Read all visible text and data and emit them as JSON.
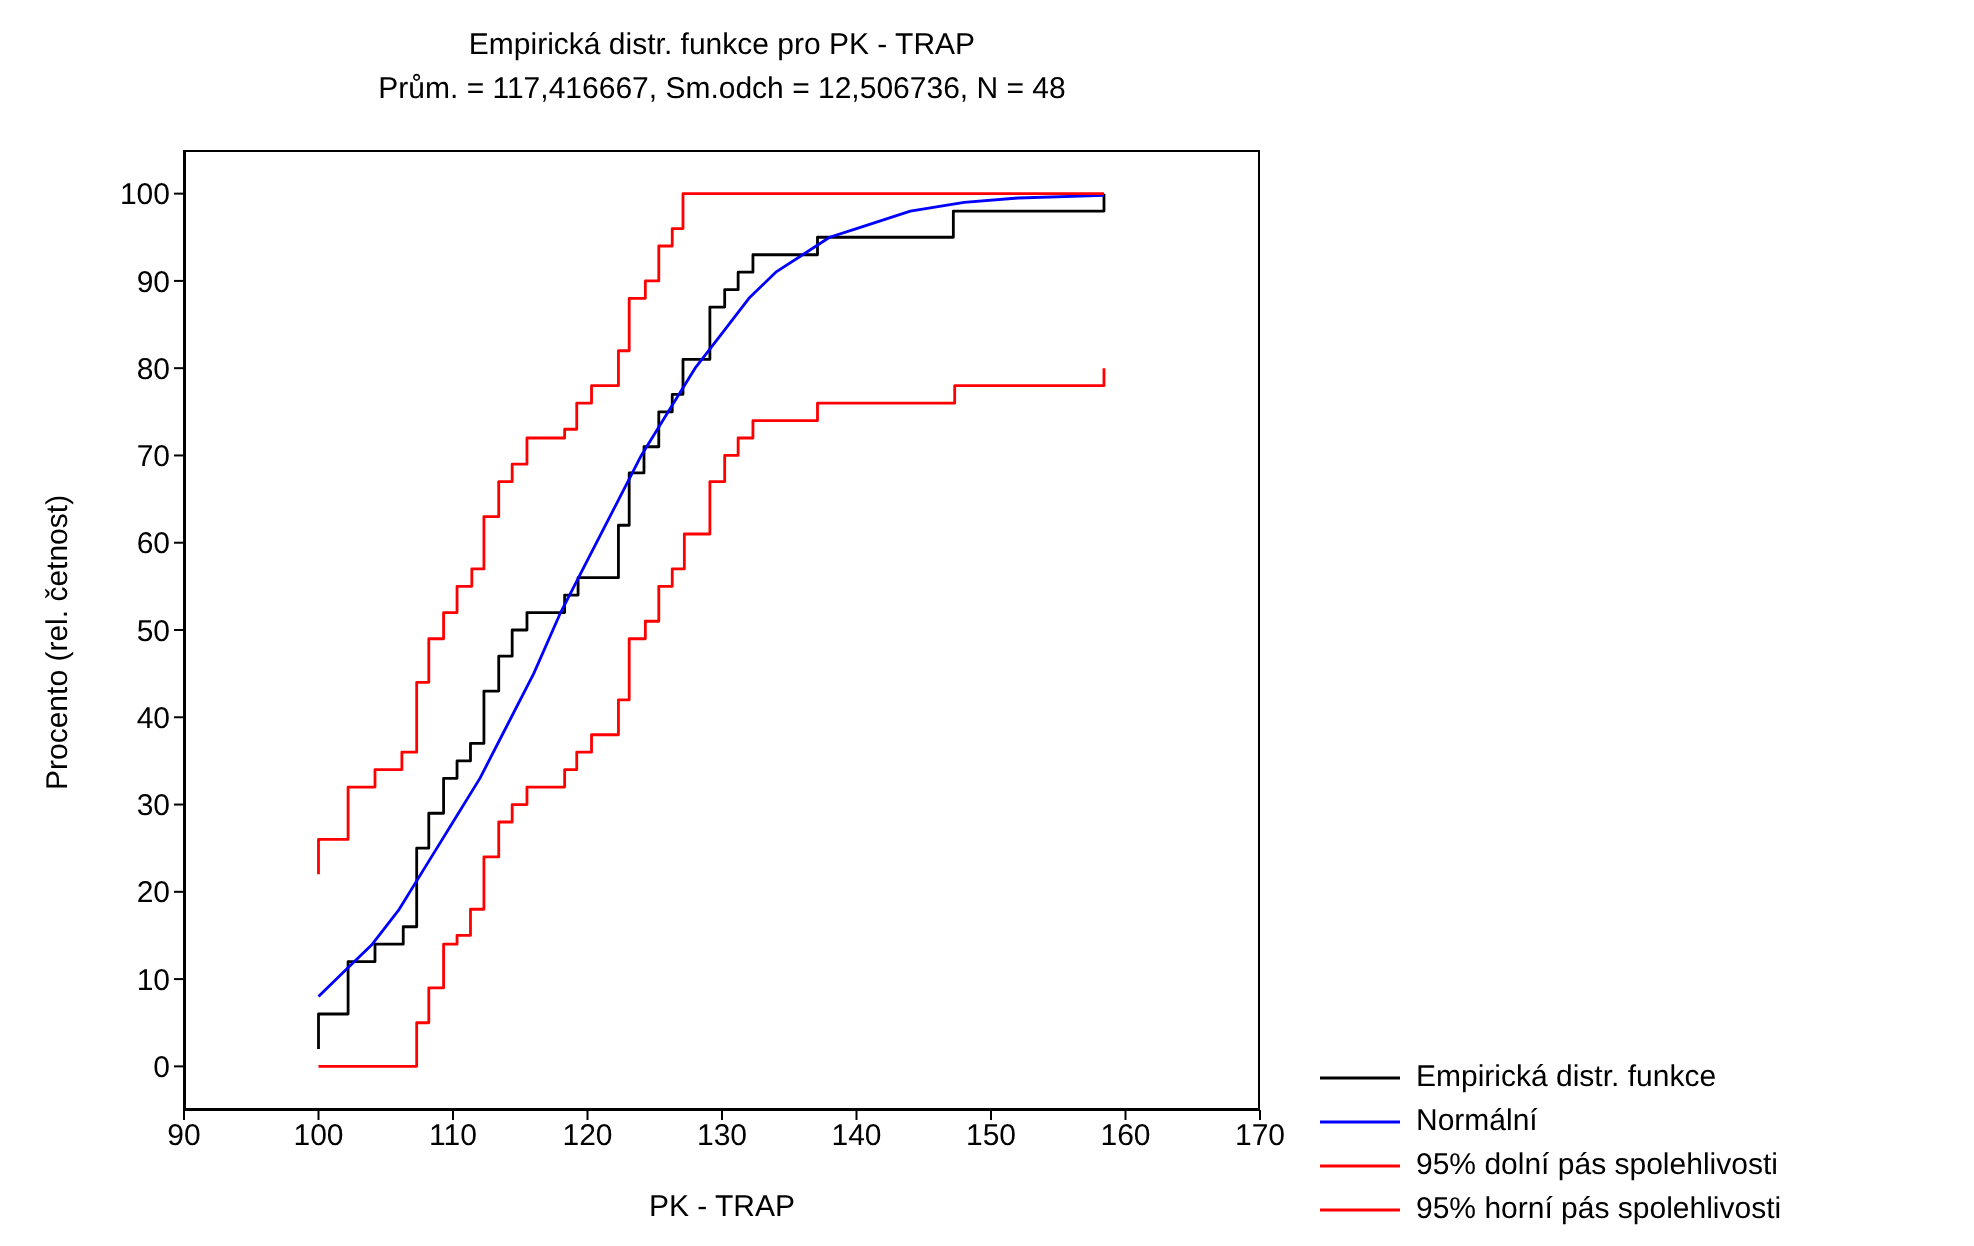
{
  "chart_data": {
    "type": "step",
    "title": "Empirická distr. funkce pro PK - TRAP",
    "subtitle": "Prům. = 117,416667, Sm.odch = 12,506736, N = 48",
    "xlabel": "PK - TRAP",
    "ylabel": "Procento (rel. četnost)",
    "xlim": [
      90,
      170
    ],
    "xticks": [
      90,
      100,
      110,
      120,
      130,
      140,
      150,
      160,
      170
    ],
    "ylim": [
      -5,
      105
    ],
    "yticks": [
      0,
      10,
      20,
      30,
      40,
      50,
      60,
      70,
      80,
      90,
      100
    ],
    "grid": false,
    "legend": "bottom right",
    "marker": "none",
    "line_style": "solid",
    "series": [
      {
        "name": "Empirická distr. funkce",
        "color": "#000000",
        "x": [
          100,
          100,
          102.2,
          104.2,
          106.3,
          107.3,
          108.2,
          109.3,
          110.3,
          111.3,
          112.3,
          113.4,
          114.4,
          115.5,
          118.3,
          119.3,
          122.3,
          123.1,
          124.2,
          125.3,
          126.3,
          127.1,
          129.1,
          130.2,
          131.2,
          132.3,
          137.1,
          147.2,
          158.4
        ],
        "values": [
          2,
          6,
          12,
          14,
          16,
          25,
          29,
          33,
          35,
          37,
          43,
          47,
          50,
          52,
          54,
          56,
          62,
          68,
          71,
          75,
          77,
          81,
          87,
          89,
          91,
          93,
          95,
          98,
          100
        ]
      },
      {
        "name": "Normální",
        "type": "line",
        "color": "#0000ff",
        "x": [
          100,
          102,
          104,
          106,
          108,
          110,
          112,
          114,
          116,
          118,
          120,
          122,
          124,
          126,
          128,
          130,
          132,
          134,
          136,
          138,
          140,
          144,
          148,
          152,
          158.4
        ],
        "values": [
          8,
          11,
          14,
          18,
          23,
          28,
          33,
          39,
          45,
          52,
          58,
          64,
          70,
          75,
          80,
          84,
          88,
          91,
          93,
          95,
          96,
          98,
          99,
          99.5,
          99.8
        ]
      },
      {
        "name": "95% dolní pás spolehlivosti",
        "color": "#ff0000",
        "x": [
          100,
          107.3,
          108.2,
          109.3,
          110.3,
          111.3,
          112.3,
          113.4,
          114.4,
          115.5,
          118.3,
          119.2,
          120.3,
          122.3,
          123.1,
          124.3,
          125.3,
          126.3,
          127.2,
          129.1,
          130.2,
          131.2,
          132.3,
          137.1,
          147.3,
          158.4
        ],
        "values": [
          0,
          5,
          9,
          14,
          15,
          18,
          24,
          28,
          30,
          32,
          34,
          36,
          38,
          42,
          49,
          51,
          55,
          57,
          61,
          67,
          70,
          72,
          74,
          76,
          78,
          80
        ]
      },
      {
        "name": "95% horní pás spolehlivosti",
        "color": "#ff0000",
        "x": [
          100,
          100,
          102.2,
          104.2,
          106.2,
          107.3,
          108.2,
          109.3,
          110.3,
          111.4,
          112.3,
          113.4,
          114.4,
          115.5,
          118.3,
          119.2,
          120.3,
          122.3,
          123.1,
          124.3,
          125.3,
          126.3,
          127.1,
          158.4
        ],
        "values": [
          22,
          26,
          32,
          34,
          36,
          44,
          49,
          52,
          55,
          57,
          63,
          67,
          69,
          72,
          73,
          76,
          78,
          82,
          88,
          90,
          94,
          96,
          100,
          100
        ]
      }
    ]
  }
}
